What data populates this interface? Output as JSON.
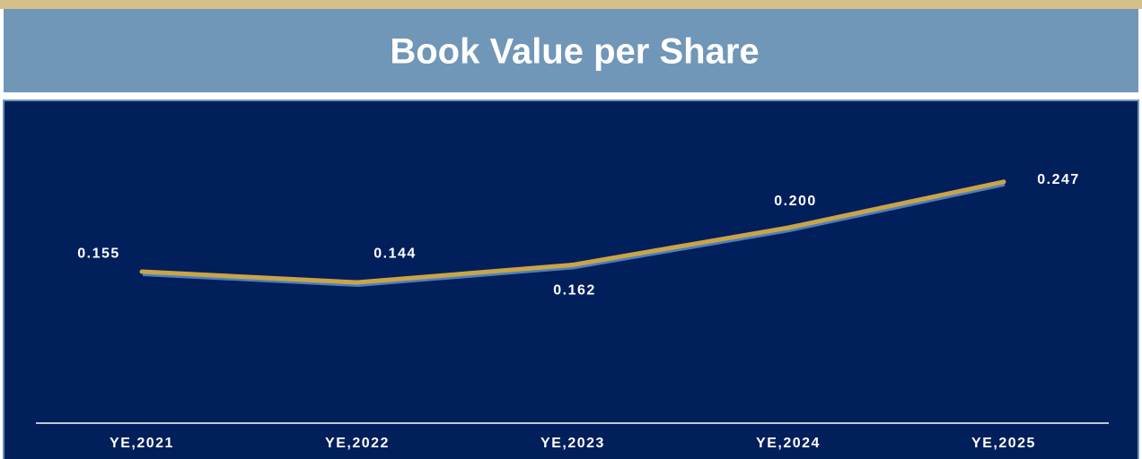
{
  "chart_data": {
    "type": "line",
    "title": "Book Value per Share",
    "categories": [
      "YE,2021",
      "YE,2022",
      "YE,2023",
      "YE,2024",
      "YE,2025"
    ],
    "values": [
      0.155,
      0.144,
      0.162,
      0.2,
      0.247
    ],
    "value_labels": [
      "0.155",
      "0.144",
      "0.162",
      "0.200",
      "0.247"
    ],
    "color": "#c9a448",
    "ylim": [
      0,
      0.3
    ]
  }
}
